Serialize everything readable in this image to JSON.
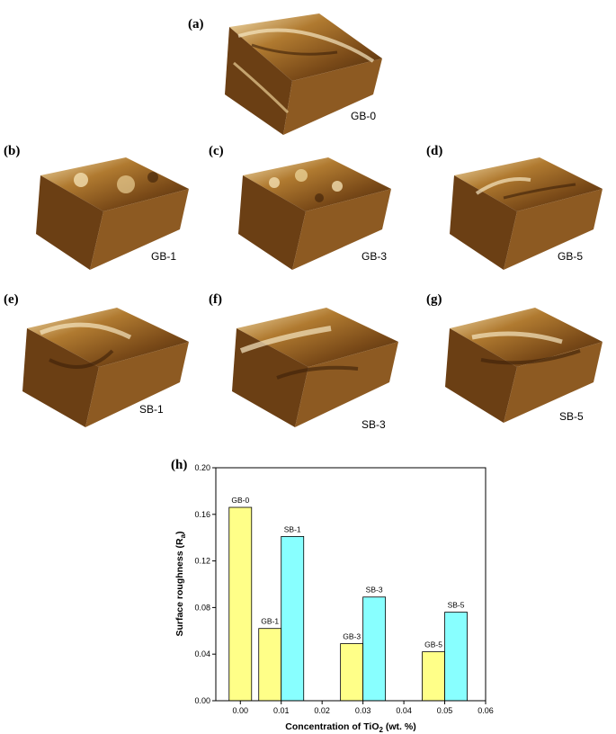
{
  "panels": [
    {
      "letter": "(a)",
      "sample": "GB-0"
    },
    {
      "letter": "(b)",
      "sample": "GB-1"
    },
    {
      "letter": "(c)",
      "sample": "GB-3"
    },
    {
      "letter": "(d)",
      "sample": "GB-5"
    },
    {
      "letter": "(e)",
      "sample": "SB-1"
    },
    {
      "letter": "(f)",
      "sample": "SB-3"
    },
    {
      "letter": "(g)",
      "sample": "SB-5"
    }
  ],
  "colors": {
    "afm_light": "#f3dfb0",
    "afm_mid": "#b07a30",
    "afm_dark": "#4a2a0c",
    "bar_gb": "#ffff88",
    "bar_sb": "#88ffff"
  },
  "chart_data": {
    "type": "bar",
    "panel_letter": "(h)",
    "xlabel_main": "Concentration of TiO",
    "xlabel_sub": "2",
    "xlabel_tail": " (wt. %)",
    "ylabel_main": "Surface roughness (R",
    "ylabel_sub": "a",
    "ylabel_tail": ")",
    "xlim": [
      -0.006,
      0.06
    ],
    "ylim": [
      0.0,
      0.2
    ],
    "x_ticks": [
      0.0,
      0.01,
      0.02,
      0.03,
      0.04,
      0.05,
      0.06
    ],
    "x_tick_labels": [
      "0.00",
      "0.01",
      "0.02",
      "0.03",
      "0.04",
      "0.05",
      "0.06"
    ],
    "y_ticks": [
      0.0,
      0.04,
      0.08,
      0.12,
      0.16,
      0.2
    ],
    "y_tick_labels": [
      "0.00",
      "0.04",
      "0.08",
      "0.12",
      "0.16",
      "0.20"
    ],
    "bar_width": 0.0055,
    "bars": [
      {
        "label": "GB-0",
        "x": 0.0,
        "value": 0.166,
        "group": "GB"
      },
      {
        "label": "GB-1",
        "x": 0.01,
        "value": 0.062,
        "group": "GB"
      },
      {
        "label": "SB-1",
        "x": 0.01,
        "value": 0.141,
        "group": "SB"
      },
      {
        "label": "GB-3",
        "x": 0.03,
        "value": 0.049,
        "group": "GB"
      },
      {
        "label": "SB-3",
        "x": 0.03,
        "value": 0.089,
        "group": "SB"
      },
      {
        "label": "GB-5",
        "x": 0.05,
        "value": 0.042,
        "group": "GB"
      },
      {
        "label": "SB-5",
        "x": 0.05,
        "value": 0.076,
        "group": "SB"
      }
    ]
  }
}
